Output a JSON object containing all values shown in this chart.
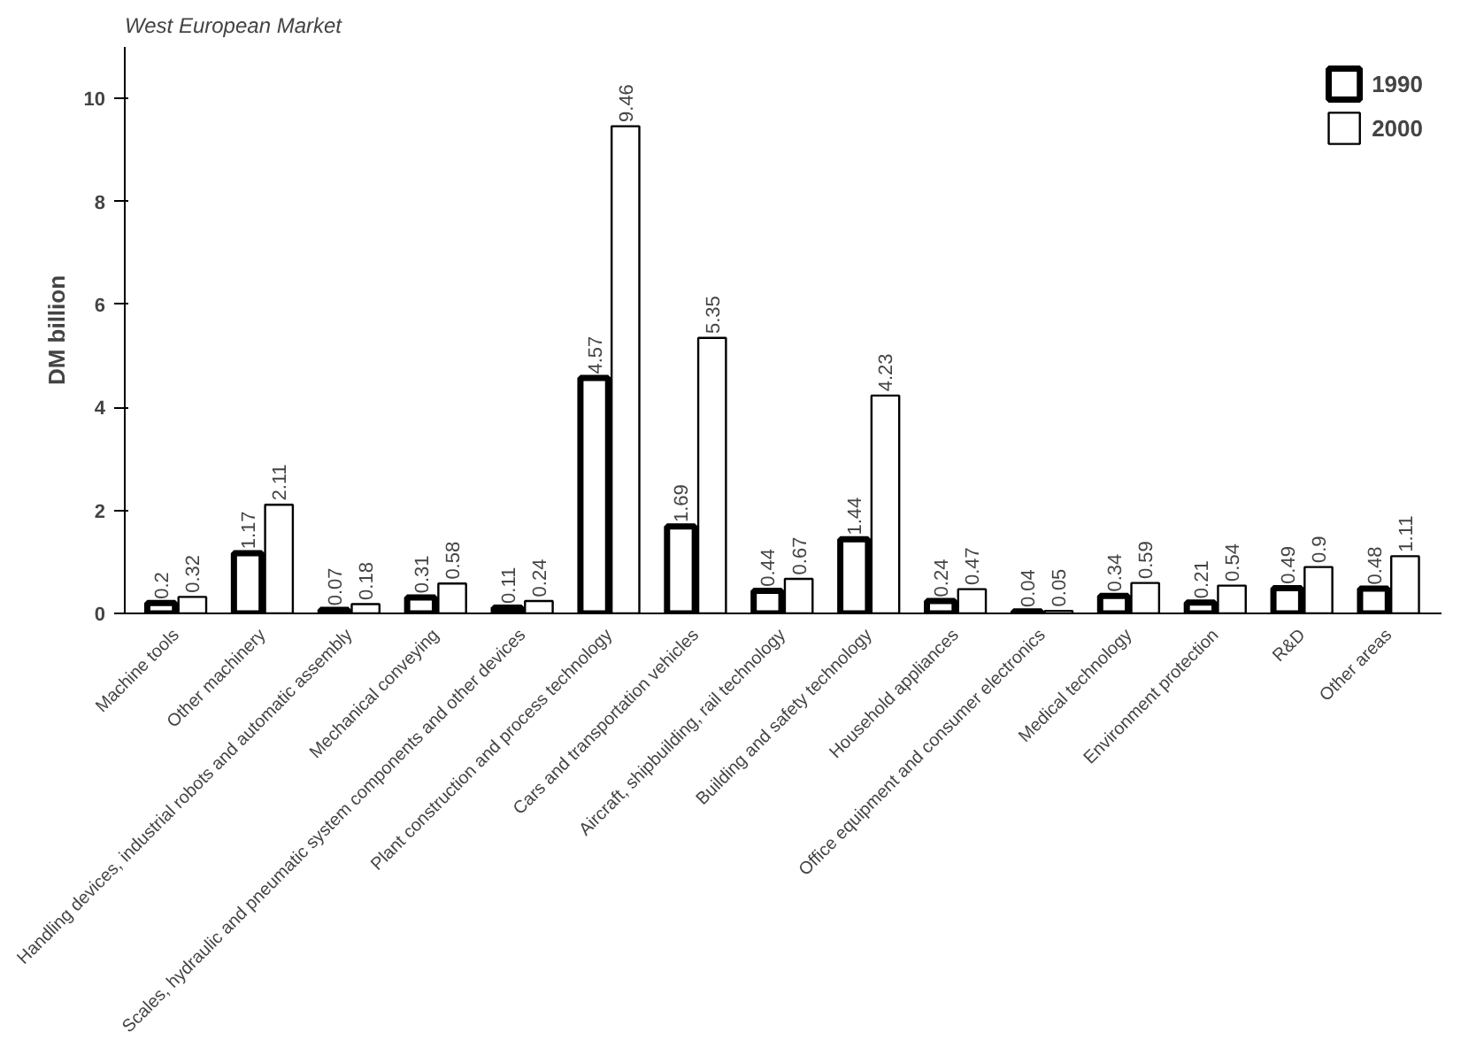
{
  "chart_data": {
    "type": "bar",
    "title": "West European Market",
    "ylabel": "DM billion",
    "categories": [
      "Machine tools",
      "Other machinery",
      "Handling devices, industrial robots and automatic assembly",
      "Mechanical conveying",
      "Scales, hydraulic and pneumatic system components and other devices",
      "Plant construction and process technology",
      "Cars and transportation vehicles",
      "Aircraft, shipbuilding, rail technology",
      "Building and safety technology",
      "Household appliances",
      "Office equipment and consumer electronics",
      "Medical technology",
      "Environment protection",
      "R&D",
      "Other areas"
    ],
    "series": [
      {
        "name": "1990",
        "color": "#000000",
        "values": [
          0.2,
          1.17,
          0.07,
          0.31,
          0.11,
          4.57,
          1.69,
          0.44,
          1.44,
          0.24,
          0.04,
          0.34,
          0.21,
          0.49,
          0.48
        ]
      },
      {
        "name": "2000",
        "color": "#000000",
        "values": [
          0.32,
          2.11,
          0.18,
          0.58,
          0.24,
          9.46,
          5.35,
          0.67,
          4.23,
          0.47,
          0.05,
          0.59,
          0.54,
          0.9,
          1.11
        ]
      }
    ],
    "ylim": [
      0,
      11
    ],
    "yticks": [
      0,
      2,
      4,
      6,
      8,
      10
    ],
    "grid": false,
    "legend": "top right",
    "data_labels": true
  }
}
